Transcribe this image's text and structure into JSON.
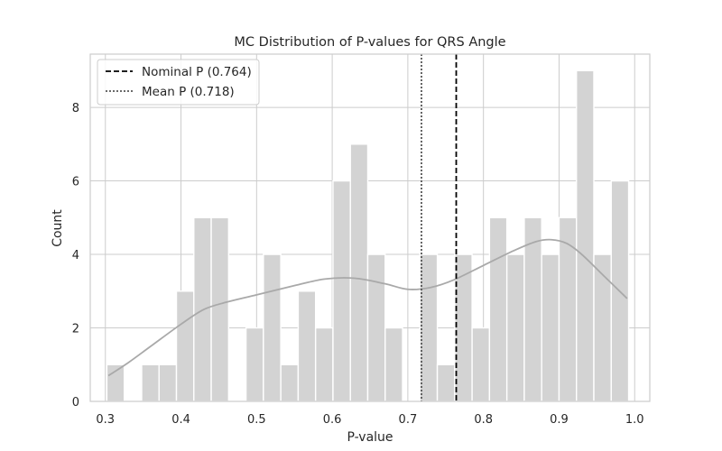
{
  "chart_data": {
    "type": "bar",
    "title": "MC Distribution of P-values for QRS Angle",
    "xlabel": "P-value",
    "ylabel": "Count",
    "xlim": [
      0.28,
      1.02
    ],
    "ylim": [
      0,
      9.45
    ],
    "xticks": [
      "0.3",
      "0.4",
      "0.5",
      "0.6",
      "0.7",
      "0.8",
      "0.9",
      "1.0"
    ],
    "yticks": [
      "0",
      "2",
      "4",
      "6",
      "8"
    ],
    "grid": true,
    "legend_position": "top-left",
    "bar_color": "#d3d3d3",
    "bins": [
      {
        "x0": 0.302,
        "x1": 0.325,
        "count": 1
      },
      {
        "x0": 0.325,
        "x1": 0.348,
        "count": 0
      },
      {
        "x0": 0.348,
        "x1": 0.371,
        "count": 1
      },
      {
        "x0": 0.371,
        "x1": 0.394,
        "count": 1
      },
      {
        "x0": 0.394,
        "x1": 0.417,
        "count": 3
      },
      {
        "x0": 0.417,
        "x1": 0.44,
        "count": 5
      },
      {
        "x0": 0.44,
        "x1": 0.463,
        "count": 5
      },
      {
        "x0": 0.463,
        "x1": 0.486,
        "count": 0
      },
      {
        "x0": 0.486,
        "x1": 0.509,
        "count": 2
      },
      {
        "x0": 0.509,
        "x1": 0.532,
        "count": 4
      },
      {
        "x0": 0.532,
        "x1": 0.555,
        "count": 1
      },
      {
        "x0": 0.555,
        "x1": 0.578,
        "count": 3
      },
      {
        "x0": 0.578,
        "x1": 0.601,
        "count": 2
      },
      {
        "x0": 0.601,
        "x1": 0.624,
        "count": 6
      },
      {
        "x0": 0.624,
        "x1": 0.647,
        "count": 7
      },
      {
        "x0": 0.647,
        "x1": 0.67,
        "count": 4
      },
      {
        "x0": 0.67,
        "x1": 0.693,
        "count": 2
      },
      {
        "x0": 0.693,
        "x1": 0.716,
        "count": 0
      },
      {
        "x0": 0.716,
        "x1": 0.739,
        "count": 4
      },
      {
        "x0": 0.739,
        "x1": 0.762,
        "count": 1
      },
      {
        "x0": 0.762,
        "x1": 0.785,
        "count": 4
      },
      {
        "x0": 0.785,
        "x1": 0.808,
        "count": 2
      },
      {
        "x0": 0.808,
        "x1": 0.831,
        "count": 5
      },
      {
        "x0": 0.831,
        "x1": 0.854,
        "count": 4
      },
      {
        "x0": 0.854,
        "x1": 0.877,
        "count": 5
      },
      {
        "x0": 0.877,
        "x1": 0.9,
        "count": 4
      },
      {
        "x0": 0.9,
        "x1": 0.923,
        "count": 5
      },
      {
        "x0": 0.923,
        "x1": 0.946,
        "count": 9
      },
      {
        "x0": 0.946,
        "x1": 0.969,
        "count": 4
      },
      {
        "x0": 0.969,
        "x1": 0.992,
        "count": 6
      }
    ],
    "kde": {
      "color": "#a9a9a9",
      "x": [
        0.304,
        0.33,
        0.36,
        0.4,
        0.43,
        0.46,
        0.5,
        0.55,
        0.59,
        0.63,
        0.67,
        0.7,
        0.73,
        0.76,
        0.8,
        0.84,
        0.87,
        0.89,
        0.91,
        0.93,
        0.96,
        0.99
      ],
      "y": [
        0.7,
        1.05,
        1.5,
        2.1,
        2.5,
        2.7,
        2.9,
        3.15,
        3.33,
        3.35,
        3.2,
        3.05,
        3.1,
        3.3,
        3.7,
        4.1,
        4.35,
        4.4,
        4.3,
        4.0,
        3.4,
        2.8
      ]
    },
    "lines": [
      {
        "name": "Nominal P (0.764)",
        "x": 0.764,
        "style": "dashed",
        "color": "#000000"
      },
      {
        "name": "Mean P (0.718)",
        "x": 0.718,
        "style": "dotted",
        "color": "#555555"
      }
    ]
  }
}
